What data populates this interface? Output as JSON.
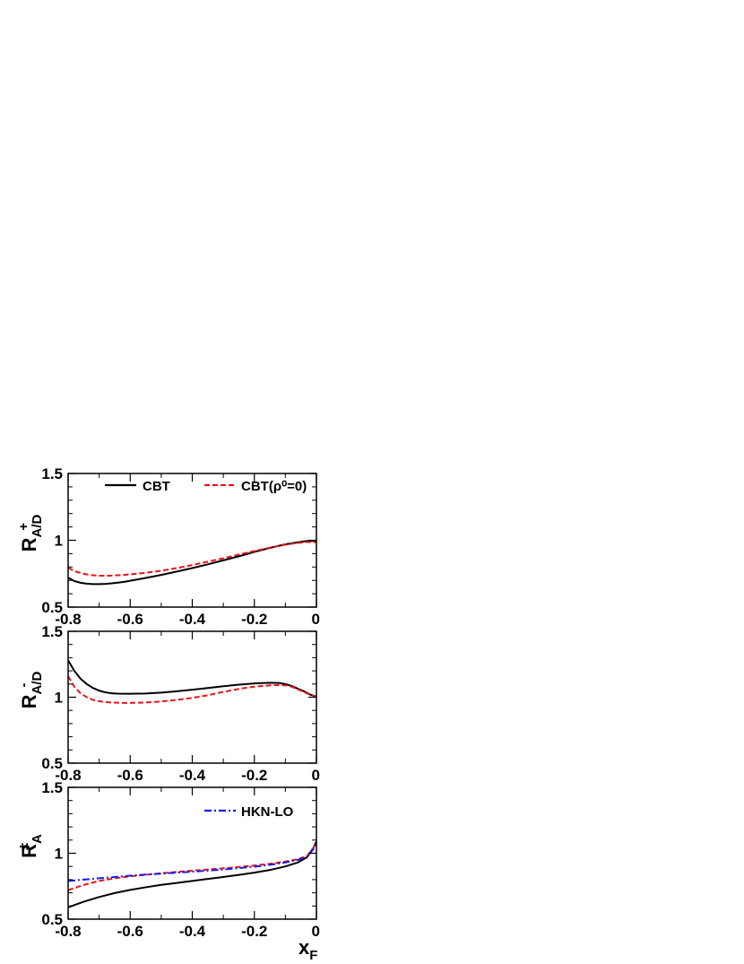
{
  "chart_data": [
    {
      "type": "line",
      "xlim": [
        -0.8,
        0
      ],
      "ylim": [
        0.5,
        1.5
      ],
      "x_ticks": [
        "-0.8",
        "-0.6",
        "-0.4",
        "-0.2",
        "0"
      ],
      "y_ticks": [
        "0.5",
        "1",
        "1.5"
      ],
      "ylabel": {
        "main": "R",
        "sub": "A/D",
        "sup": "+"
      },
      "legend": {
        "placement": "top",
        "entries": [
          "CBT",
          "CBT(ρ⁰=0)"
        ]
      },
      "series": [
        {
          "name": "CBT",
          "color": "#000000",
          "style": "solid",
          "x": [
            -0.8,
            -0.78,
            -0.76,
            -0.74,
            -0.72,
            -0.7,
            -0.68,
            -0.66,
            -0.64,
            -0.62,
            -0.6,
            -0.55,
            -0.5,
            -0.45,
            -0.4,
            -0.35,
            -0.3,
            -0.25,
            -0.2,
            -0.15,
            -0.1,
            -0.06,
            -0.03,
            -0.01,
            0.0
          ],
          "y": [
            0.72,
            0.695,
            0.682,
            0.675,
            0.672,
            0.672,
            0.674,
            0.678,
            0.683,
            0.689,
            0.697,
            0.718,
            0.741,
            0.766,
            0.792,
            0.82,
            0.85,
            0.88,
            0.913,
            0.943,
            0.97,
            0.985,
            0.995,
            0.995,
            0.99
          ]
        },
        {
          "name": "CBT(ρ⁰=0)",
          "color": "#e8141a",
          "style": "dashed",
          "x": [
            -0.8,
            -0.78,
            -0.76,
            -0.74,
            -0.72,
            -0.7,
            -0.68,
            -0.66,
            -0.64,
            -0.62,
            -0.6,
            -0.55,
            -0.5,
            -0.45,
            -0.4,
            -0.35,
            -0.3,
            -0.25,
            -0.2,
            -0.15,
            -0.1,
            -0.06,
            -0.03,
            -0.01,
            0.0
          ],
          "y": [
            0.795,
            0.77,
            0.755,
            0.745,
            0.738,
            0.735,
            0.735,
            0.736,
            0.738,
            0.741,
            0.745,
            0.757,
            0.772,
            0.792,
            0.815,
            0.84,
            0.866,
            0.893,
            0.92,
            0.945,
            0.967,
            0.98,
            0.987,
            0.988,
            0.985
          ]
        }
      ]
    },
    {
      "type": "line",
      "xlim": [
        -0.8,
        0
      ],
      "ylim": [
        0.5,
        1.5
      ],
      "x_ticks": [
        "-0.8",
        "-0.6",
        "-0.4",
        "-0.2",
        "0"
      ],
      "y_ticks": [
        "0.5",
        "1",
        "1.5"
      ],
      "ylabel": {
        "main": "R",
        "sub": "A/D",
        "sup": "-"
      },
      "series": [
        {
          "name": "CBT",
          "color": "#000000",
          "style": "solid",
          "x": [
            -0.8,
            -0.78,
            -0.76,
            -0.74,
            -0.72,
            -0.7,
            -0.68,
            -0.66,
            -0.64,
            -0.62,
            -0.6,
            -0.55,
            -0.5,
            -0.45,
            -0.4,
            -0.35,
            -0.3,
            -0.25,
            -0.2,
            -0.15,
            -0.12,
            -0.1,
            -0.08,
            -0.06,
            -0.04,
            -0.02,
            0.0
          ],
          "y": [
            1.28,
            1.2,
            1.14,
            1.1,
            1.07,
            1.05,
            1.037,
            1.03,
            1.027,
            1.026,
            1.026,
            1.028,
            1.035,
            1.045,
            1.057,
            1.07,
            1.083,
            1.095,
            1.105,
            1.11,
            1.108,
            1.1,
            1.085,
            1.065,
            1.045,
            1.02,
            1.005
          ]
        },
        {
          "name": "CBT(ρ⁰=0)",
          "color": "#e8141a",
          "style": "dashed",
          "x": [
            -0.8,
            -0.78,
            -0.76,
            -0.74,
            -0.72,
            -0.7,
            -0.68,
            -0.66,
            -0.64,
            -0.62,
            -0.6,
            -0.55,
            -0.5,
            -0.45,
            -0.4,
            -0.35,
            -0.3,
            -0.25,
            -0.2,
            -0.15,
            -0.12,
            -0.1,
            -0.08,
            -0.06,
            -0.04,
            -0.02,
            0.0
          ],
          "y": [
            1.16,
            1.08,
            1.03,
            1.0,
            0.98,
            0.97,
            0.963,
            0.96,
            0.958,
            0.957,
            0.957,
            0.96,
            0.968,
            0.98,
            0.995,
            1.015,
            1.04,
            1.063,
            1.08,
            1.09,
            1.092,
            1.09,
            1.08,
            1.06,
            1.04,
            1.018,
            1.005
          ]
        }
      ]
    },
    {
      "type": "line",
      "xlim": [
        -0.8,
        0
      ],
      "ylim": [
        0.5,
        1.5
      ],
      "x_ticks": [
        "-0.8",
        "-0.6",
        "-0.4",
        "-0.2",
        "0"
      ],
      "y_ticks": [
        "0.5",
        "1",
        "1.5"
      ],
      "xlabel": {
        "main": "x",
        "sub": "F"
      },
      "ylabel": {
        "main": "R",
        "sub": "A",
        "sup": "±"
      },
      "legend": {
        "placement": "top-right",
        "entries": [
          "HKN-LO"
        ]
      },
      "series": [
        {
          "name": "CBT",
          "color": "#000000",
          "style": "solid",
          "x": [
            -0.8,
            -0.75,
            -0.7,
            -0.65,
            -0.6,
            -0.55,
            -0.5,
            -0.45,
            -0.4,
            -0.35,
            -0.3,
            -0.25,
            -0.2,
            -0.15,
            -0.1,
            -0.06,
            -0.03,
            -0.01,
            0.0
          ],
          "y": [
            0.59,
            0.632,
            0.668,
            0.698,
            0.722,
            0.742,
            0.76,
            0.775,
            0.79,
            0.805,
            0.82,
            0.836,
            0.853,
            0.873,
            0.9,
            0.93,
            0.97,
            1.04,
            1.09
          ]
        },
        {
          "name": "CBT(ρ⁰=0)",
          "color": "#e8141a",
          "style": "dashed",
          "x": [
            -0.8,
            -0.75,
            -0.7,
            -0.65,
            -0.6,
            -0.55,
            -0.5,
            -0.45,
            -0.4,
            -0.35,
            -0.3,
            -0.25,
            -0.2,
            -0.15,
            -0.1,
            -0.06,
            -0.03,
            -0.01,
            0.0
          ],
          "y": [
            0.72,
            0.76,
            0.79,
            0.81,
            0.825,
            0.837,
            0.848,
            0.858,
            0.868,
            0.877,
            0.886,
            0.896,
            0.907,
            0.92,
            0.937,
            0.955,
            0.98,
            1.04,
            1.09
          ]
        },
        {
          "name": "HKN-LO",
          "color": "#1a1ae6",
          "style": "dashdot",
          "x": [
            -0.8,
            -0.75,
            -0.7,
            -0.65,
            -0.6,
            -0.55,
            -0.5,
            -0.45,
            -0.4,
            -0.35,
            -0.3,
            -0.25,
            -0.2,
            -0.15,
            -0.1,
            -0.06,
            -0.03,
            -0.01,
            0.0
          ],
          "y": [
            0.79,
            0.8,
            0.81,
            0.82,
            0.83,
            0.838,
            0.845,
            0.853,
            0.86,
            0.868,
            0.877,
            0.887,
            0.898,
            0.912,
            0.93,
            0.95,
            0.975,
            1.03,
            1.09
          ]
        }
      ]
    }
  ]
}
